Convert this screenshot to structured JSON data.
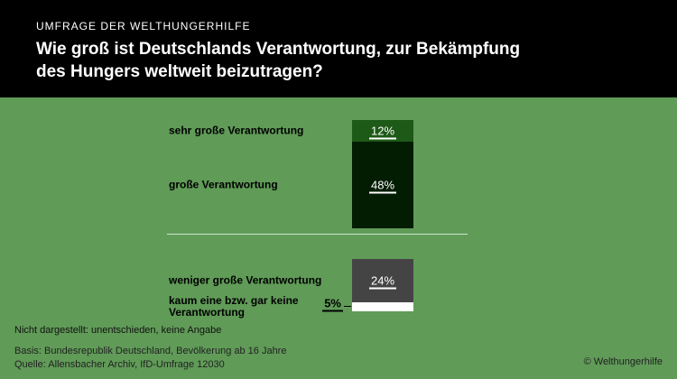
{
  "chart_data": {
    "type": "bar",
    "kicker": "UMFRAGE DER WELTHUNGERHILFE",
    "title": "Wie groß ist Deutschlands Verantwortung, zur Bekämpfung des Hungers weltweit beizutragen?",
    "categories": [
      "sehr große Verantwortung",
      "große Verantwortung",
      "weniger große Verantwortung",
      "kaum eine bzw. gar keine Verantwortung"
    ],
    "values": [
      12,
      48,
      24,
      5
    ],
    "value_labels": [
      "12%",
      "48%",
      "24%",
      "5%"
    ],
    "colors": [
      "#1d5a17",
      "#021d02",
      "#444444",
      "#ffffff"
    ],
    "note": "Nicht dargestellt: unentschieden, keine Angabe",
    "source": [
      "Basis: Bundesrepublik Deutschland, Bevölkerung ab 16 Jahre",
      "Quelle: Allensbacher Archiv, IfD-Umfrage 12030"
    ],
    "copyright": "© Welthungerhilfe"
  }
}
